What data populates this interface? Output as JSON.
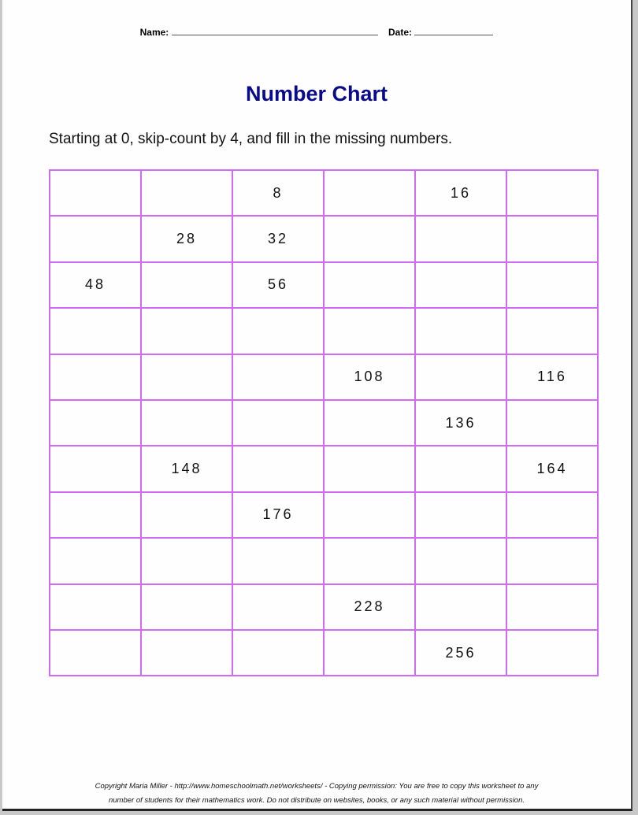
{
  "header": {
    "name_label": "Name:",
    "date_label": "Date:"
  },
  "title": "Number Chart",
  "instructions": "Starting at 0, skip-count by 4, and fill in the missing numbers.",
  "grid": [
    [
      "",
      "",
      "8",
      "",
      "16",
      ""
    ],
    [
      "",
      "28",
      "32",
      "",
      "",
      ""
    ],
    [
      "48",
      "",
      "56",
      "",
      "",
      ""
    ],
    [
      "",
      "",
      "",
      "",
      "",
      ""
    ],
    [
      "",
      "",
      "",
      "108",
      "",
      "116"
    ],
    [
      "",
      "",
      "",
      "",
      "136",
      ""
    ],
    [
      "",
      "148",
      "",
      "",
      "",
      "164"
    ],
    [
      "",
      "",
      "176",
      "",
      "",
      ""
    ],
    [
      "",
      "",
      "",
      "",
      "",
      ""
    ],
    [
      "",
      "",
      "",
      "228",
      "",
      ""
    ],
    [
      "",
      "",
      "",
      "",
      "256",
      ""
    ]
  ],
  "colors": {
    "grid_border": "#d26bf3",
    "title": "#0a0a8c"
  },
  "footer": {
    "line1": "Copyright Maria Miller - http://www.homeschoolmath.net/worksheets/ - Copying permission: You are free to copy this worksheet to any",
    "line2": "number of students for their mathematics work. Do not distribute on websites, books, or any such material without permission."
  }
}
